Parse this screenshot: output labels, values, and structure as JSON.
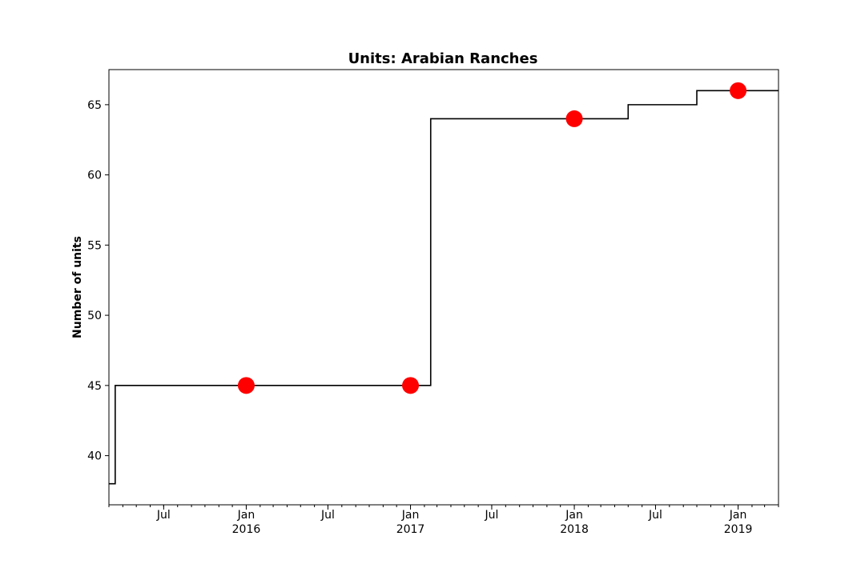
{
  "chart_data": {
    "type": "line",
    "title": "Units: Arabian Ranches",
    "xlabel": "",
    "ylabel": "Number of units",
    "grid": false,
    "legend": "none",
    "colors": {
      "line": "#000000",
      "marker": "#ff0000"
    },
    "xlim": [
      "2015-03-01",
      "2019-04-01"
    ],
    "ylim": [
      36.5,
      67.5
    ],
    "yticks": [
      40,
      45,
      50,
      55,
      60,
      65
    ],
    "xticks": [
      {
        "date": "2015-07-01",
        "label": "Jul",
        "sub": ""
      },
      {
        "date": "2016-01-01",
        "label": "Jan",
        "sub": "2016"
      },
      {
        "date": "2016-07-01",
        "label": "Jul",
        "sub": ""
      },
      {
        "date": "2017-01-01",
        "label": "Jan",
        "sub": "2017"
      },
      {
        "date": "2017-07-01",
        "label": "Jul",
        "sub": ""
      },
      {
        "date": "2018-01-01",
        "label": "Jan",
        "sub": "2018"
      },
      {
        "date": "2018-07-01",
        "label": "Jul",
        "sub": ""
      },
      {
        "date": "2019-01-01",
        "label": "Jan",
        "sub": "2019"
      }
    ],
    "series": [
      {
        "name": "",
        "style": "step",
        "points": [
          {
            "x": "2015-03-01",
            "y": 38
          },
          {
            "x": "2015-03-15",
            "y": 45
          },
          {
            "x": "2017-02-15",
            "y": 64
          },
          {
            "x": "2018-05-01",
            "y": 65
          },
          {
            "x": "2018-10-01",
            "y": 66
          },
          {
            "x": "2019-04-01",
            "y": 66
          }
        ]
      },
      {
        "name": "",
        "style": "markers",
        "points": [
          {
            "x": "2016-01-01",
            "y": 45
          },
          {
            "x": "2017-01-01",
            "y": 45
          },
          {
            "x": "2018-01-01",
            "y": 64
          },
          {
            "x": "2019-01-01",
            "y": 66
          }
        ]
      }
    ]
  }
}
